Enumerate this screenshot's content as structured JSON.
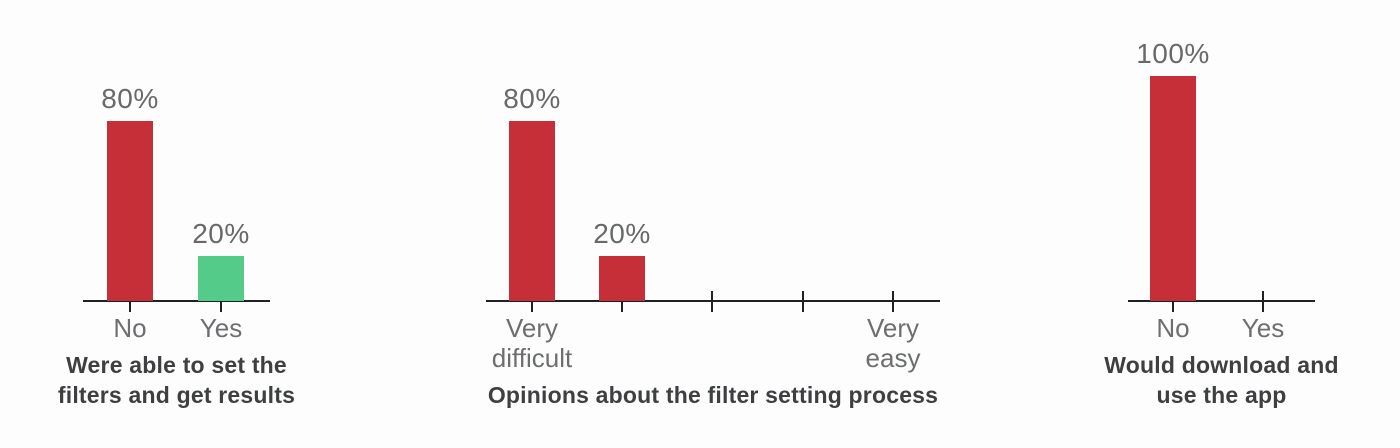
{
  "page": {
    "background": "#fdfdfd"
  },
  "colors": {
    "bar_negative": "#c62e38",
    "bar_positive": "#55cb8a",
    "axis": "#212121",
    "value_label": "#68696b",
    "tick_label": "#6d6e70",
    "title": "#3e3f41"
  },
  "chart_data": [
    {
      "type": "bar",
      "title": "Were able to set the\nfilters and get results",
      "categories": [
        "No",
        "Yes"
      ],
      "values": [
        80,
        20
      ],
      "value_labels": [
        "80%",
        "20%"
      ],
      "bar_colors": [
        "#c62e38",
        "#55cb8a"
      ],
      "ylim": [
        0,
        100
      ],
      "grid": false,
      "legend": false
    },
    {
      "type": "bar",
      "title": "Opinions about the filter setting process",
      "categories": [
        "Very\ndifficult",
        "",
        "",
        "",
        "Very\neasy"
      ],
      "values": [
        80,
        20,
        0,
        0,
        0
      ],
      "value_labels": [
        "80%",
        "20%",
        "",
        "",
        ""
      ],
      "bar_colors": [
        "#c62e38",
        "#c62e38",
        "",
        "",
        ""
      ],
      "ylim": [
        0,
        100
      ],
      "grid": false,
      "legend": false
    },
    {
      "type": "bar",
      "title": "Would download and\nuse the app",
      "categories": [
        "No",
        "Yes"
      ],
      "values": [
        100,
        0
      ],
      "value_labels": [
        "100%",
        ""
      ],
      "bar_colors": [
        "#c62e38",
        ""
      ],
      "ylim": [
        0,
        100
      ],
      "grid": false,
      "legend": false
    }
  ]
}
